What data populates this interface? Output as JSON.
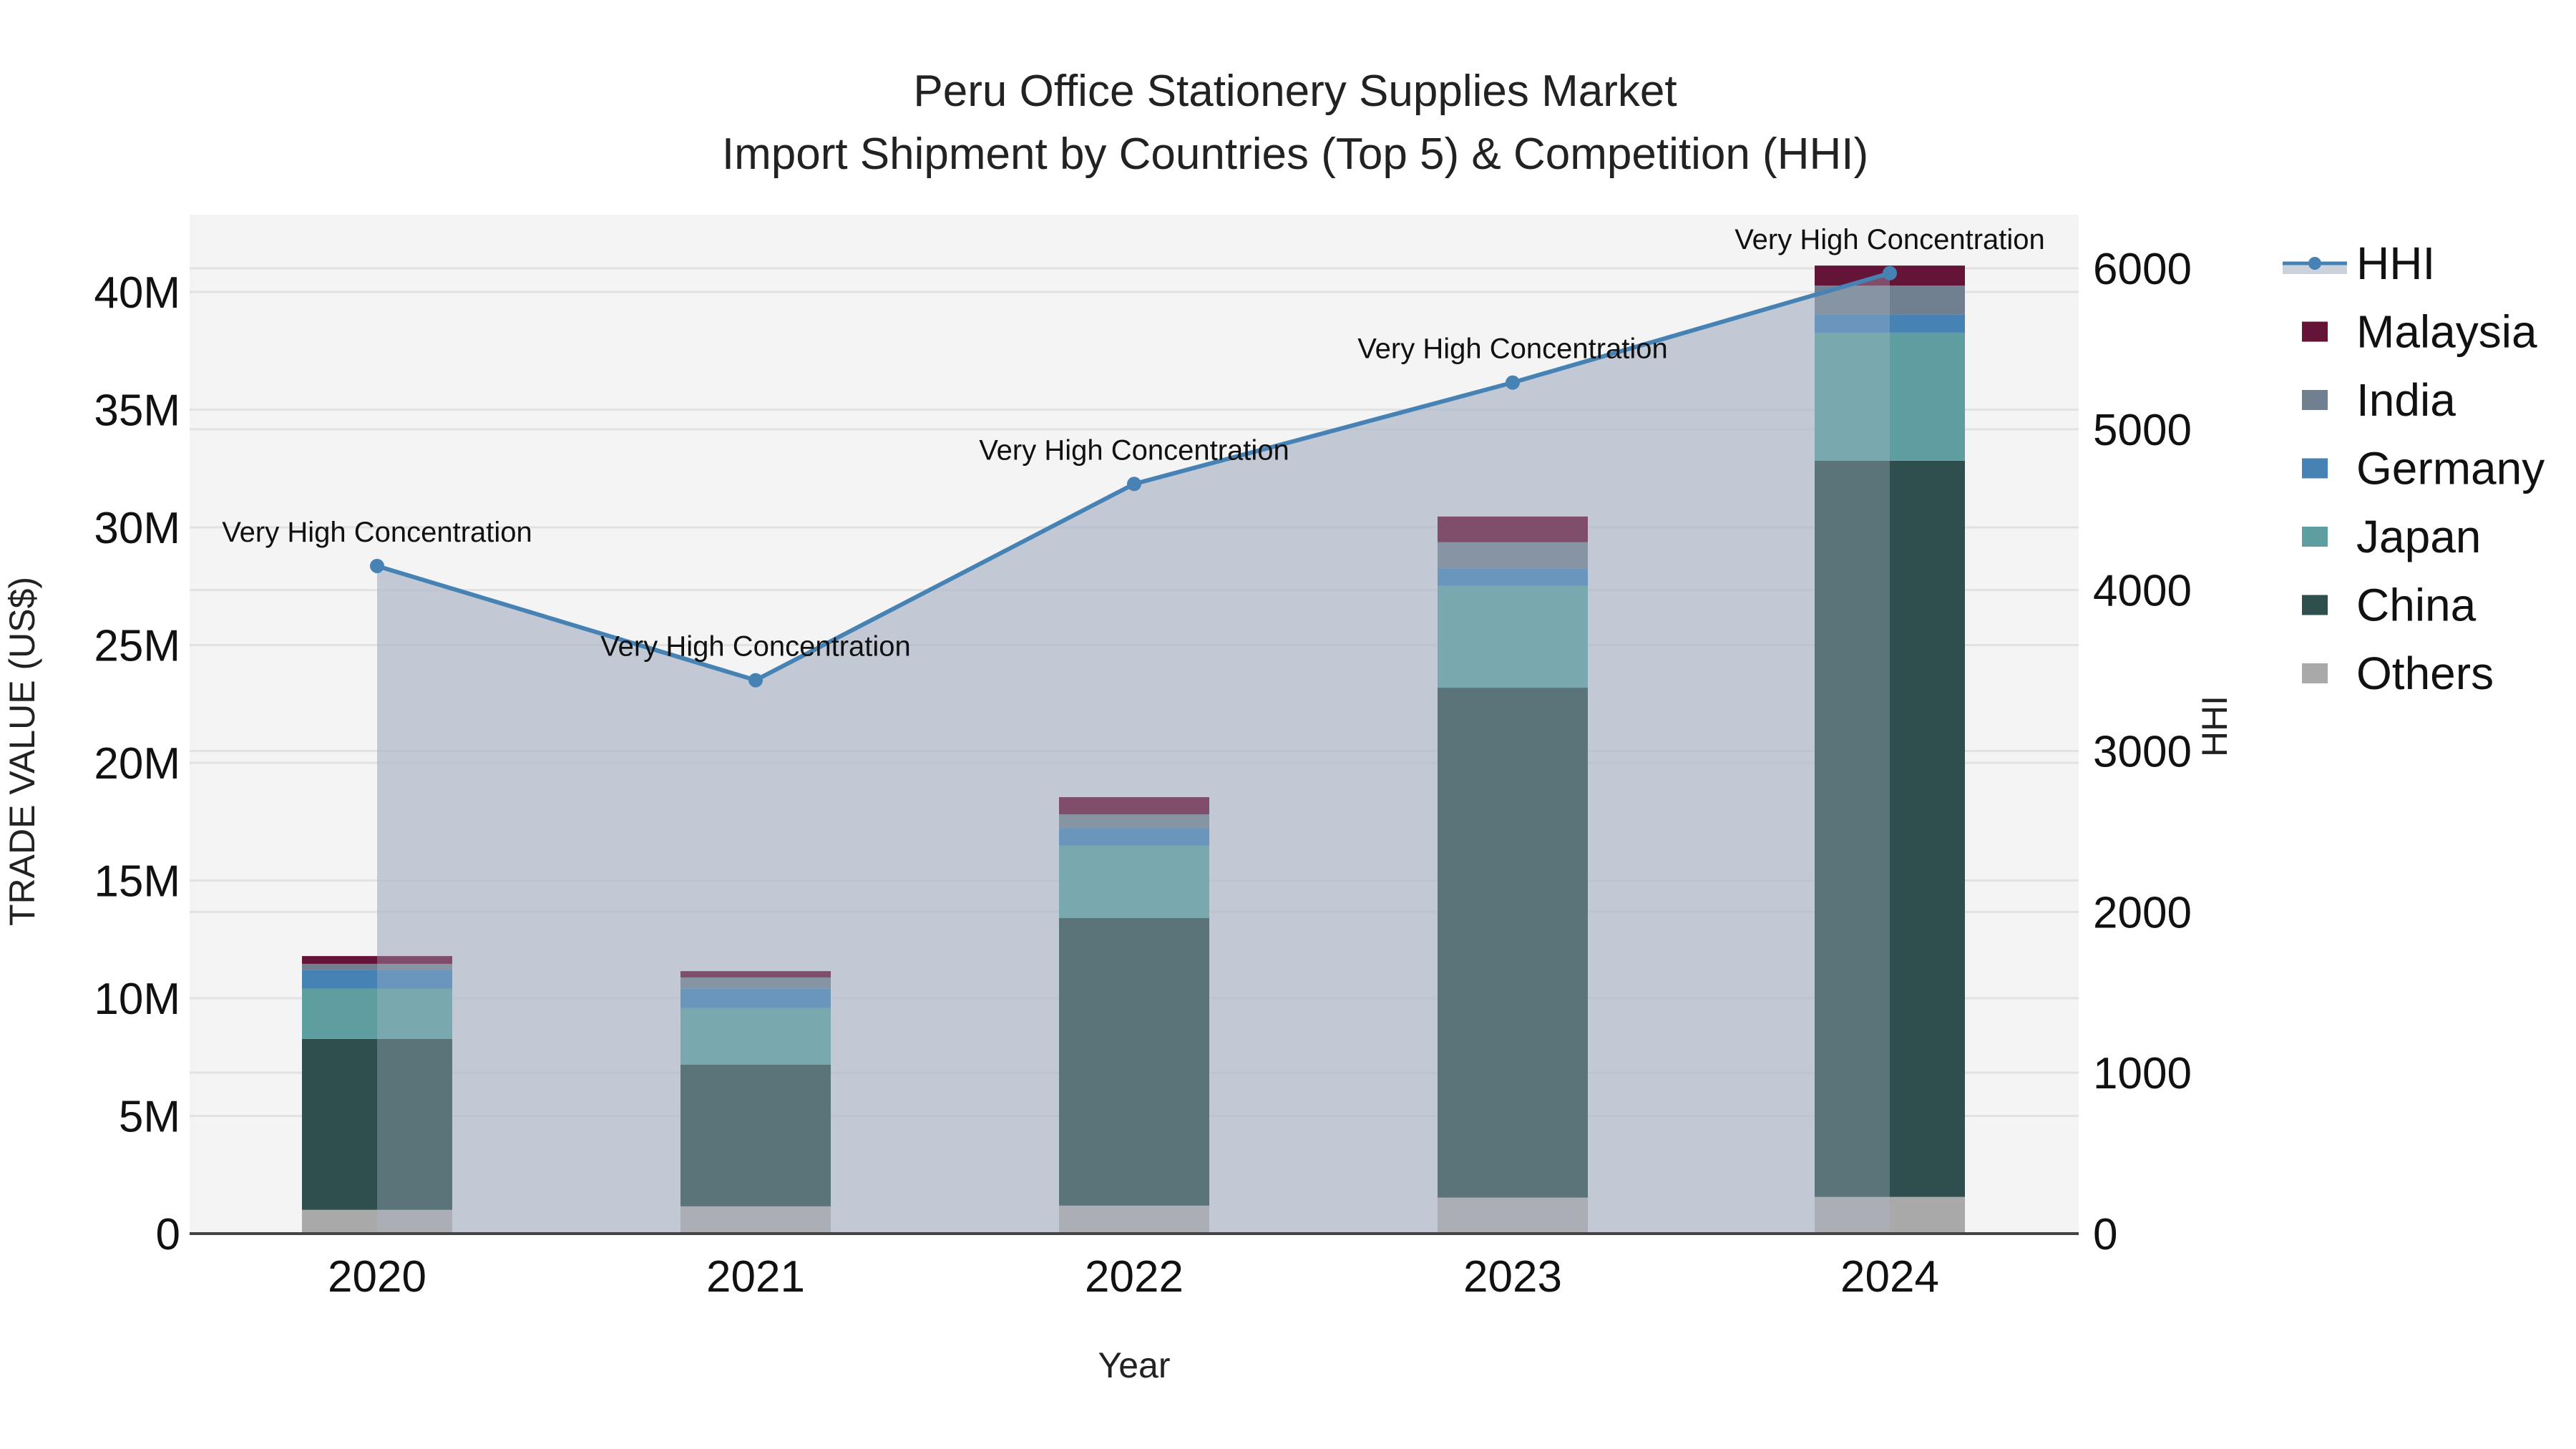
{
  "title": {
    "line1": "Peru Office Stationery Supplies Market",
    "line2": "Import Shipment by Countries (Top 5) & Competition (HHI)"
  },
  "axes": {
    "x_title": "Year",
    "y_left_title": "TRADE VALUE (US$)",
    "y_right_title": "HHI",
    "y_left_ticks": [
      "0",
      "5M",
      "10M",
      "15M",
      "20M",
      "25M",
      "30M",
      "35M",
      "40M"
    ],
    "y_right_ticks": [
      "0",
      "1000",
      "2000",
      "3000",
      "4000",
      "5000",
      "6000"
    ]
  },
  "legend": {
    "items": [
      {
        "label": "HHI",
        "type": "line",
        "color": "#4682b4"
      },
      {
        "label": "Malaysia",
        "type": "bar",
        "color": "#641436"
      },
      {
        "label": "India",
        "type": "bar",
        "color": "#708090"
      },
      {
        "label": "Germany",
        "type": "bar",
        "color": "#4682b4"
      },
      {
        "label": "Japan",
        "type": "bar",
        "color": "#5f9ea0"
      },
      {
        "label": "China",
        "type": "bar",
        "color": "#2f4f4f"
      },
      {
        "label": "Others",
        "type": "bar",
        "color": "#a9a9a9"
      }
    ]
  },
  "annotations": [
    "Very High Concentration",
    "Very High Concentration",
    "Very High Concentration",
    "Very High Concentration",
    "Very High Concentration"
  ],
  "colors": {
    "plot_bg": "#f4f4f4",
    "hhi_line": "#4682b4",
    "hhi_fill": "rgba(176,186,202,0.55)",
    "Malaysia": "#641436",
    "India": "#708090",
    "Germany": "#4682b4",
    "Japan": "#5f9ea0",
    "China": "#2f4f4f",
    "Others": "#a9a9a9"
  },
  "chart_data": {
    "type": "bar",
    "title": "Peru Office Stationery Supplies Market — Import Shipment by Countries (Top 5) & Competition (HHI)",
    "xlabel": "Year",
    "ylabel": "TRADE VALUE (US$)",
    "y2label": "HHI",
    "categories": [
      "2020",
      "2021",
      "2022",
      "2023",
      "2024"
    ],
    "stacked": true,
    "unit": "US$ millions",
    "series": [
      {
        "name": "Others",
        "values": [
          1.01,
          1.16,
          1.19,
          1.53,
          1.56
        ]
      },
      {
        "name": "China",
        "values": [
          7.26,
          6.02,
          12.22,
          21.66,
          31.27
        ]
      },
      {
        "name": "Japan",
        "values": [
          2.13,
          2.4,
          3.07,
          4.33,
          5.44
        ]
      },
      {
        "name": "Germany",
        "values": [
          0.81,
          0.82,
          0.74,
          0.74,
          0.76
        ]
      },
      {
        "name": "India",
        "values": [
          0.25,
          0.48,
          0.59,
          1.11,
          1.24
        ]
      },
      {
        "name": "Malaysia",
        "values": [
          0.33,
          0.27,
          0.73,
          1.09,
          0.85
        ]
      }
    ],
    "totals": [
      11.79,
      11.15,
      18.54,
      30.46,
      41.12
    ],
    "line_series": {
      "name": "HHI",
      "axis": "right",
      "values": [
        4150,
        3440,
        4660,
        5290,
        5970
      ]
    },
    "annotations": [
      "Very High Concentration",
      "Very High Concentration",
      "Very High Concentration",
      "Very High Concentration",
      "Very High Concentration"
    ],
    "ylim": [
      0,
      43
    ],
    "y2lim": [
      0,
      6380
    ],
    "grid": true,
    "legend_position": "right"
  }
}
